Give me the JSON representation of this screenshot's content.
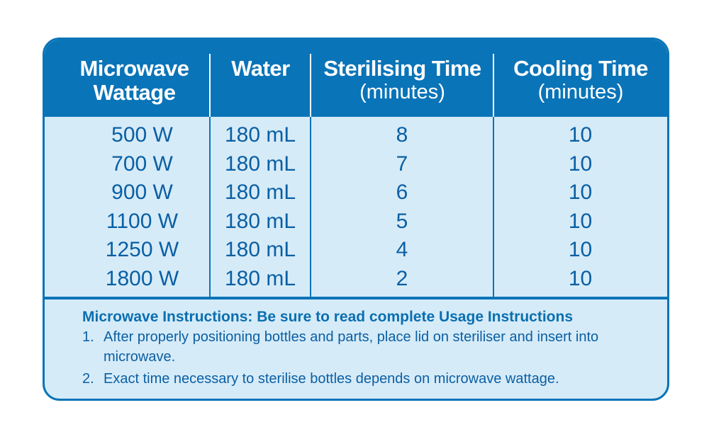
{
  "table": {
    "headers": [
      {
        "title_line1": "Microwave",
        "title_line2": "Wattage",
        "sub": ""
      },
      {
        "title_line1": "Water",
        "title_line2": "",
        "sub": ""
      },
      {
        "title_line1": "Sterilising Time",
        "title_line2": "",
        "sub": "(minutes)"
      },
      {
        "title_line1": "Cooling Time",
        "title_line2": "",
        "sub": "(minutes)"
      }
    ],
    "rows": [
      {
        "wattage": "500 W",
        "water": "180 mL",
        "sterilising": "8",
        "cooling": "10"
      },
      {
        "wattage": "700 W",
        "water": "180 mL",
        "sterilising": "7",
        "cooling": "10"
      },
      {
        "wattage": "900 W",
        "water": "180 mL",
        "sterilising": "6",
        "cooling": "10"
      },
      {
        "wattage": "1100 W",
        "water": "180 mL",
        "sterilising": "5",
        "cooling": "10"
      },
      {
        "wattage": "1250 W",
        "water": "180 mL",
        "sterilising": "4",
        "cooling": "10"
      },
      {
        "wattage": "1800 W",
        "water": "180 mL",
        "sterilising": "2",
        "cooling": "10"
      }
    ]
  },
  "instructions": {
    "title": "Microwave Instructions: Be sure to read complete Usage Instructions",
    "items": [
      {
        "num": "1.",
        "text": "After properly positioning bottles and parts, place lid on steriliser and insert into microwave."
      },
      {
        "num": "2.",
        "text": "Exact time necessary to sterilise bottles depends on microwave wattage."
      }
    ]
  },
  "colors": {
    "header_blue": "#0a74b8",
    "body_light_blue": "#d6ebf8",
    "text_blue": "#0a5fa3"
  }
}
